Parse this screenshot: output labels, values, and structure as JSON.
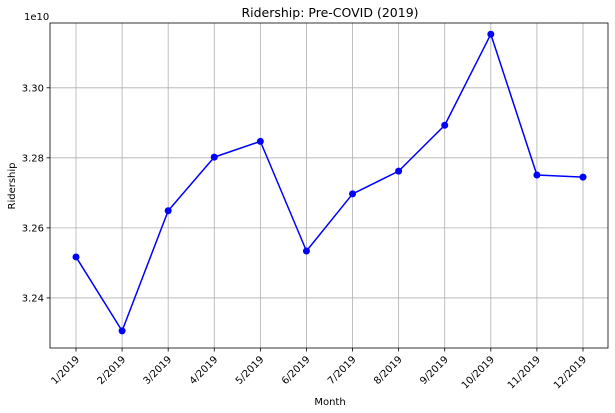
{
  "chart_data": {
    "type": "line",
    "title": "Ridership: Pre-COVID (2019)",
    "xlabel": "Month",
    "ylabel": "Ridership",
    "y_offset_label": "1e10",
    "categories": [
      "1/2019",
      "2/2019",
      "3/2019",
      "4/2019",
      "5/2019",
      "6/2019",
      "7/2019",
      "8/2019",
      "9/2019",
      "10/2019",
      "11/2019",
      "12/2019"
    ],
    "series": [
      {
        "values": [
          3.2517,
          3.2306,
          3.2649,
          3.2802,
          3.2847,
          3.2534,
          3.2697,
          3.2762,
          3.2893,
          3.3153,
          3.2751,
          3.2745
        ],
        "color": "#0000ff",
        "marker": "circle"
      }
    ],
    "yticks": [
      "3.24",
      "3.26",
      "3.28",
      "3.30"
    ],
    "ytick_values": [
      3.24,
      3.26,
      3.28,
      3.3
    ],
    "ylim": [
      3.2257,
      3.3185
    ],
    "grid": true,
    "x_tick_rotation": 45
  }
}
